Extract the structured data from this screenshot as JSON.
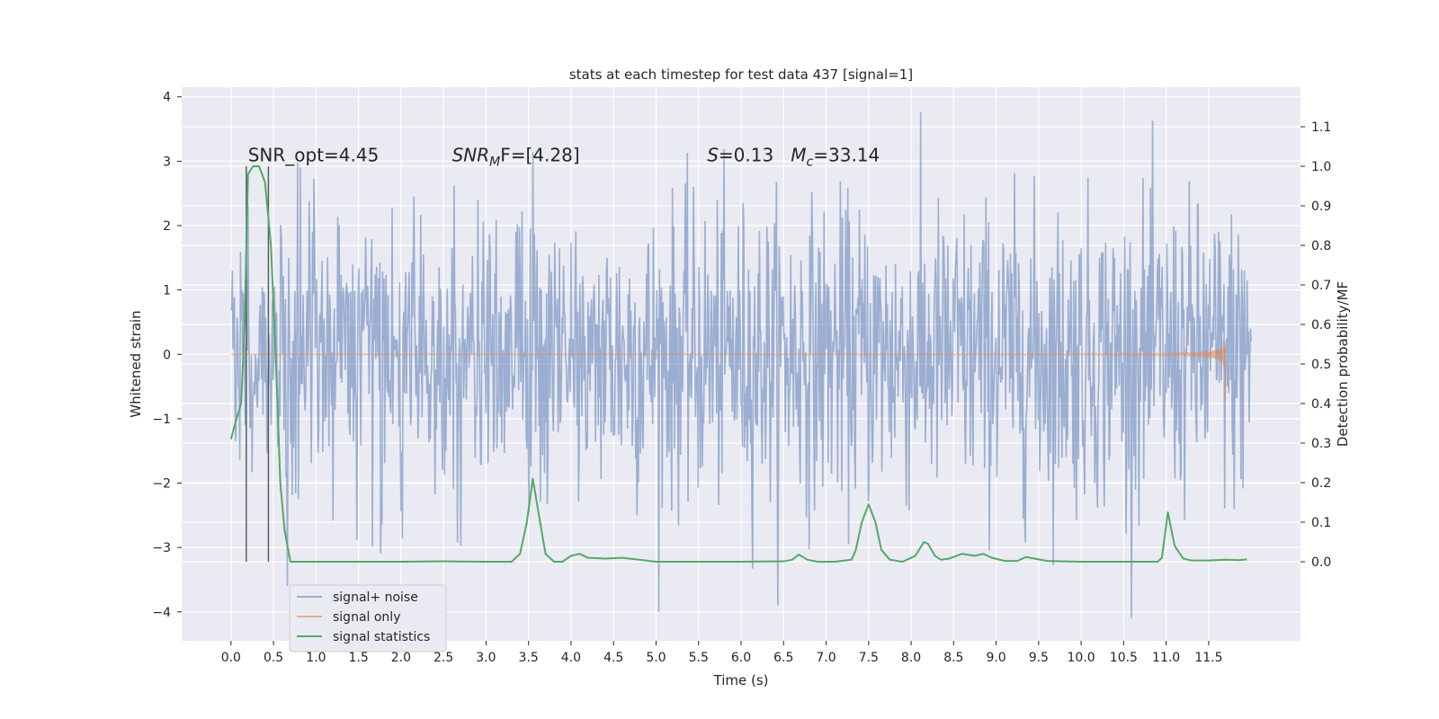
{
  "chart_data": {
    "type": "line",
    "title": "stats at each timestep for test data 437 [signal=1]",
    "xlabel": "Time (s)",
    "ylabel": "Whitened strain",
    "y2label": "Detection probability/MF",
    "xlim": [
      -0.58,
      12.58
    ],
    "ylim": [
      -4.45,
      4.15
    ],
    "y2lim": [
      -0.2,
      1.2
    ],
    "xticks": [
      0.0,
      0.5,
      1.0,
      1.5,
      2.0,
      2.5,
      3.0,
      3.5,
      4.0,
      4.5,
      5.0,
      5.5,
      6.0,
      6.5,
      7.0,
      7.5,
      8.0,
      8.5,
      9.0,
      9.5,
      10.0,
      10.5,
      11.0,
      11.5
    ],
    "xtick_labels": [
      "0.0",
      "0.5",
      "1.0",
      "1.5",
      "2.0",
      "2.5",
      "3.0",
      "3.5",
      "4.0",
      "4.5",
      "5.0",
      "5.5",
      "6.0",
      "6.5",
      "7.0",
      "7.5",
      "8.0",
      "8.5",
      "9.0",
      "9.5",
      "10.0",
      "10.5",
      "11.0",
      "11.5"
    ],
    "yticks": [
      -4,
      -3,
      -2,
      -1,
      0,
      1,
      2,
      3,
      4
    ],
    "ytick_labels": [
      "−4",
      "−3",
      "−2",
      "−1",
      "0",
      "1",
      "2",
      "3",
      "4"
    ],
    "y2ticks": [
      0.0,
      0.1,
      0.2,
      0.3,
      0.4,
      0.5,
      0.6,
      0.7,
      0.8,
      0.9,
      1.0,
      1.1
    ],
    "y2tick_labels": [
      "0.0",
      "0.1",
      "0.2",
      "0.3",
      "0.4",
      "0.5",
      "0.6",
      "0.7",
      "0.8",
      "0.9",
      "1.0",
      "1.1"
    ],
    "grid": true,
    "legend_position": "lower-left",
    "annotations": [
      {
        "text": "SNR_opt=4.45",
        "x": 0.2,
        "y": 3.0
      },
      {
        "text_parts": [
          "SNR",
          "M",
          "F=[4.28]"
        ],
        "x": 2.6,
        "y": 3.0
      },
      {
        "text_parts": [
          "S",
          "=0.13   ",
          "M",
          "c",
          "=33.14"
        ],
        "x": 5.6,
        "y": 3.0
      }
    ],
    "vlines": [
      {
        "x": 0.18,
        "y2_from": 0.0,
        "y2_to": 1.0
      },
      {
        "x": 0.44,
        "y2_from": 0.0,
        "y2_to": 1.0
      }
    ],
    "series": [
      {
        "name": "signal+ noise",
        "axis": "left",
        "color": "#4c72b0",
        "alpha": 0.5,
        "kind": "noise",
        "t_range": [
          0.0,
          12.0
        ],
        "samples": 1500,
        "amplitude_sigma": 1.0,
        "clip": [
          -4.1,
          3.8
        ]
      },
      {
        "name": "signal only",
        "axis": "left",
        "color": "#dd8452",
        "alpha": 0.6,
        "kind": "chirp",
        "t_range": [
          0.0,
          11.7
        ],
        "merger_time": 11.7,
        "peak_amplitude": 1.05
      },
      {
        "name": "signal statistics",
        "axis": "right",
        "color": "#55a868",
        "kind": "line",
        "x": [
          0.0,
          0.05,
          0.12,
          0.16,
          0.2,
          0.26,
          0.33,
          0.4,
          0.47,
          0.53,
          0.58,
          0.63,
          0.7,
          1.0,
          2.0,
          2.5,
          3.0,
          3.3,
          3.4,
          3.48,
          3.55,
          3.62,
          3.7,
          3.8,
          3.9,
          4.0,
          4.1,
          4.2,
          4.4,
          4.6,
          4.8,
          5.0,
          5.5,
          6.0,
          6.5,
          6.6,
          6.68,
          6.78,
          6.9,
          7.1,
          7.3,
          7.35,
          7.42,
          7.5,
          7.58,
          7.65,
          7.75,
          7.9,
          8.05,
          8.15,
          8.2,
          8.28,
          8.35,
          8.45,
          8.6,
          8.75,
          8.85,
          8.95,
          9.1,
          9.25,
          9.35,
          9.45,
          9.6,
          10.0,
          10.5,
          10.9,
          10.95,
          11.02,
          11.1,
          11.2,
          11.3,
          11.5,
          11.7,
          11.85,
          11.95
        ],
        "y": [
          0.31,
          0.35,
          0.4,
          0.6,
          0.98,
          1.0,
          1.0,
          0.96,
          0.8,
          0.5,
          0.2,
          0.08,
          0.0,
          0.0,
          0.0,
          0.001,
          0.0,
          0.0,
          0.02,
          0.1,
          0.21,
          0.12,
          0.02,
          0.0,
          0.0,
          0.015,
          0.02,
          0.01,
          0.008,
          0.01,
          0.005,
          0.0,
          0.0,
          0.0,
          0.001,
          0.005,
          0.018,
          0.005,
          0.0,
          0.0,
          0.005,
          0.03,
          0.1,
          0.145,
          0.1,
          0.03,
          0.005,
          0.0,
          0.015,
          0.05,
          0.045,
          0.015,
          0.005,
          0.008,
          0.02,
          0.015,
          0.02,
          0.01,
          0.002,
          0.002,
          0.012,
          0.008,
          0.002,
          0.0,
          0.0,
          0.0,
          0.01,
          0.125,
          0.04,
          0.008,
          0.003,
          0.003,
          0.005,
          0.004,
          0.006
        ]
      }
    ]
  }
}
